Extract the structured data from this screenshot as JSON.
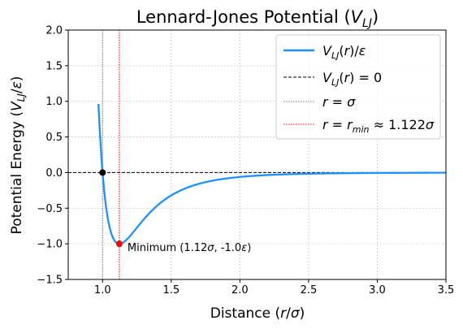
{
  "chart_data": {
    "type": "line",
    "title": "Lennard-Jones Potential (V_LJ)",
    "xlabel": "Distance (r/σ)",
    "ylabel": "Potential Energy (V_LJ/ε)",
    "xlim": [
      0.75,
      3.5
    ],
    "ylim": [
      -1.5,
      2.0
    ],
    "xticks": [
      "1.0",
      "1.5",
      "2.0",
      "2.5",
      "3.0",
      "3.5"
    ],
    "xtick_values": [
      1.0,
      1.5,
      2.0,
      2.5,
      3.0,
      3.5
    ],
    "yticks": [
      "−1.5",
      "−1.0",
      "−0.5",
      "0.0",
      "0.5",
      "1.0",
      "1.5",
      "2.0"
    ],
    "ytick_values": [
      -1.5,
      -1.0,
      -0.5,
      0.0,
      0.5,
      1.0,
      1.5,
      2.0
    ],
    "grid": true,
    "legend_position": "top-right",
    "series": [
      {
        "name": "V_LJ(r)/ε",
        "color": "#1e90ff",
        "style": "solid",
        "function": "4*((1/r)^12 - (1/r)^6)",
        "x": [
          0.98,
          0.99,
          1.0,
          1.02,
          1.05,
          1.08,
          1.1,
          1.122,
          1.15,
          1.2,
          1.25,
          1.3,
          1.4,
          1.5,
          1.75,
          2.0,
          2.5,
          3.0,
          3.5
        ],
        "y": [
          0.53,
          0.25,
          0.0,
          -0.35,
          -0.75,
          -0.95,
          -0.99,
          -1.0,
          -0.98,
          -0.87,
          -0.73,
          -0.59,
          -0.38,
          -0.25,
          -0.09,
          -0.06,
          -0.016,
          -0.005,
          -0.002
        ]
      },
      {
        "name": "V_LJ(r) = 0",
        "color": "#000000",
        "style": "dashed",
        "y": 0.0
      },
      {
        "name": "r = σ",
        "color": "#808080",
        "style": "dotted",
        "x": 1.0
      },
      {
        "name": "r = r_min ≈ 1.122σ",
        "color": "#ff0000",
        "style": "dotted",
        "x": 1.122
      }
    ],
    "points": [
      {
        "x": 1.0,
        "y": 0.0,
        "color": "#000000"
      },
      {
        "x": 1.122,
        "y": -1.0,
        "color": "#ff0000"
      }
    ],
    "annotations": [
      {
        "text": "Minimum (1.12σ, -1.0ε)",
        "x": 1.122,
        "y": -1.0,
        "color": "#ff0000"
      }
    ]
  }
}
